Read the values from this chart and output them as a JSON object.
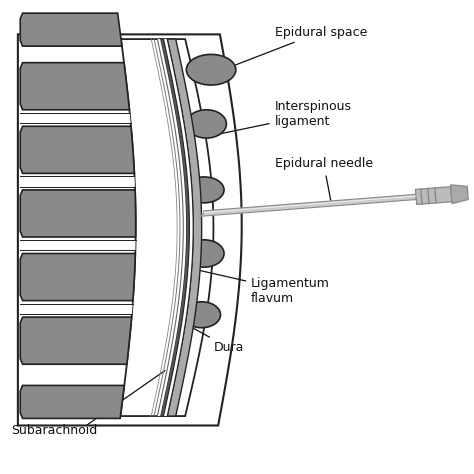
{
  "bg_color": "#ffffff",
  "vertebra_fill": "#8a8a8a",
  "vertebra_edge": "#222222",
  "text_color": "#111111",
  "labels": {
    "epidural_space": "Epidural space",
    "interspinous": "Interspinous\nligament",
    "epidural_needle": "Epidural needle",
    "ligamentum": "Ligamentum\nflavum",
    "dura": "Dura",
    "subarachnoid": "Subarachnoid"
  },
  "figsize": [
    4.74,
    4.74
  ],
  "dpi": 100
}
